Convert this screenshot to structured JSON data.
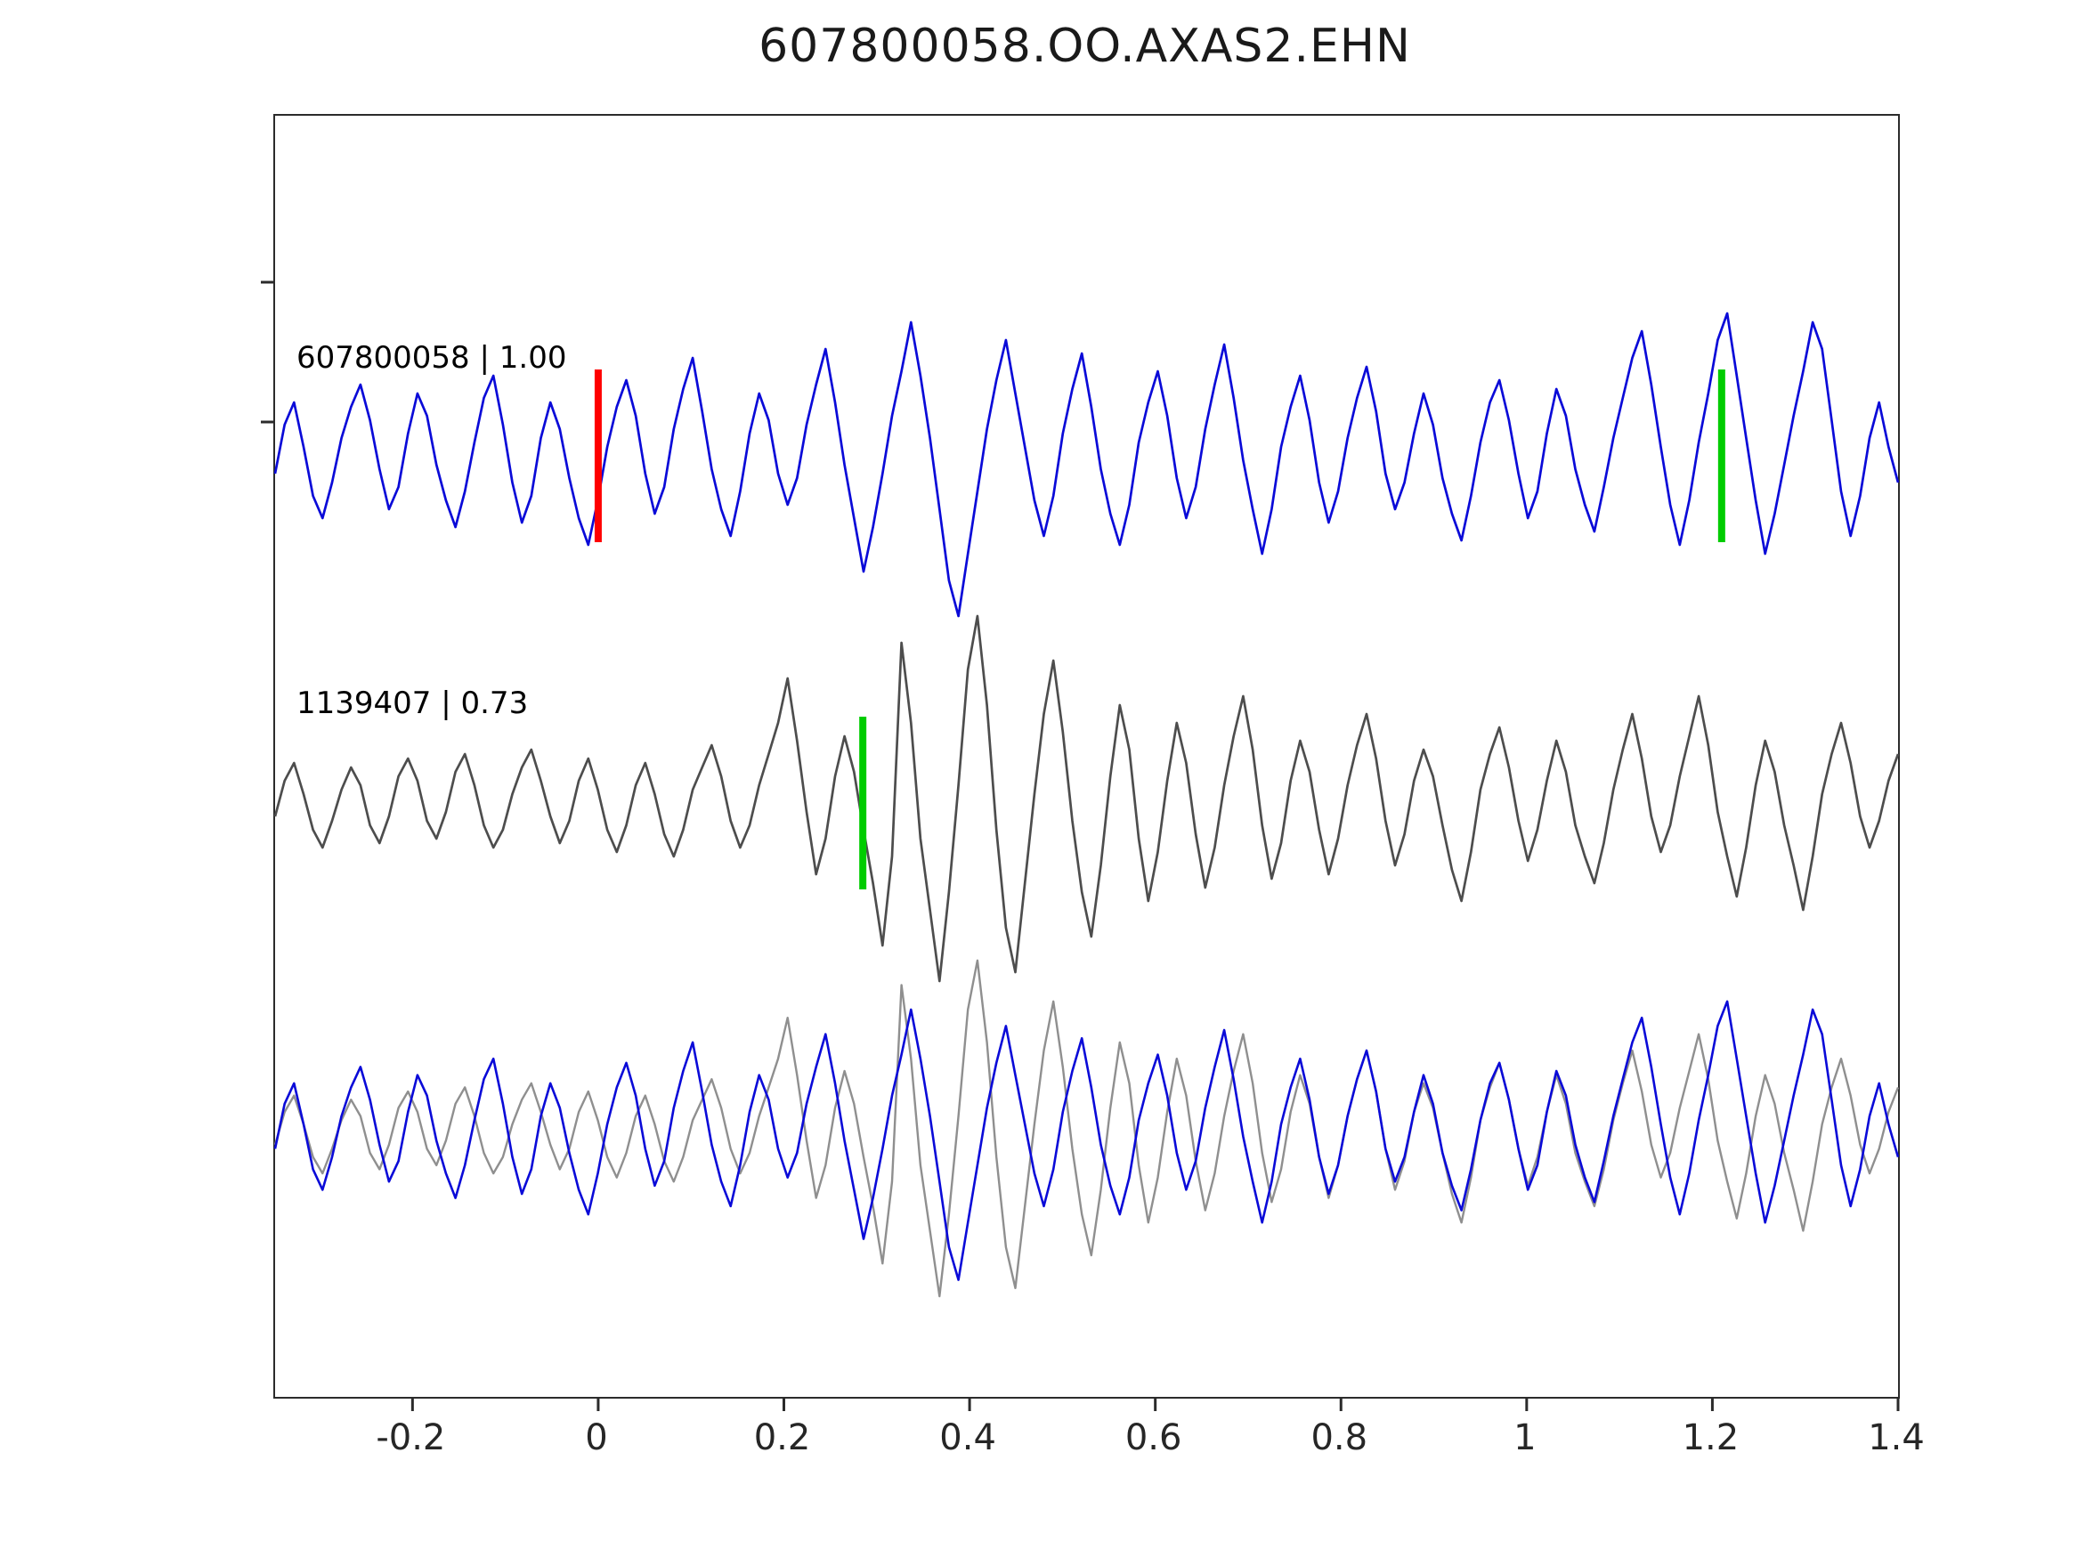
{
  "chart_data": {
    "type": "line",
    "title": "607800058.OO.AXAS2.EHN",
    "xlabel": "",
    "ylabel": "",
    "xlim": [
      -0.348,
      1.4
    ],
    "grid": false,
    "legend_position": "none",
    "x_ticks": [
      -0.2,
      0,
      0.2,
      0.4,
      0.6,
      0.8,
      1,
      1.2,
      1.4
    ],
    "x_tick_labels": [
      "-0.2",
      "0",
      "0.2",
      "0.4",
      "0.6",
      "0.8",
      "1",
      "1.2",
      "1.4"
    ],
    "panels": [
      {
        "name": "template-trace",
        "label": "607800058 | 1.00",
        "series_ref": "trace_template",
        "color": "#0a0ad8",
        "amplitude_scale": 1,
        "markers": [
          {
            "x": 0.0,
            "color": "#ff0000",
            "name": "pick-marker-red"
          },
          {
            "x": 1.21,
            "color": "#00cc00",
            "name": "pick-marker-green"
          }
        ]
      },
      {
        "name": "detection-trace",
        "label": "1139407 | 0.73",
        "series_ref": "trace_detection",
        "color": "#4d4d4d",
        "amplitude_scale": 1,
        "markers": [
          {
            "x": 0.285,
            "color": "#00cc00",
            "name": "pick-marker-green"
          }
        ]
      },
      {
        "name": "overlay-trace",
        "label": "",
        "amplitude_scale": 0.92,
        "series": [
          {
            "ref": "trace_detection",
            "color": "#8f8f8f",
            "width": 2.4
          },
          {
            "ref": "trace_template",
            "color": "#0a0ad8",
            "width": 2.6
          }
        ],
        "markers": []
      }
    ],
    "series": {
      "trace_template": [
        -20,
        35,
        60,
        10,
        -45,
        -70,
        -30,
        20,
        55,
        80,
        40,
        -15,
        -60,
        -35,
        25,
        70,
        45,
        -10,
        -50,
        -80,
        -40,
        15,
        65,
        90,
        35,
        -30,
        -75,
        -45,
        20,
        60,
        30,
        -25,
        -70,
        -100,
        -50,
        10,
        55,
        85,
        45,
        -20,
        -65,
        -35,
        30,
        75,
        110,
        50,
        -15,
        -60,
        -90,
        -40,
        25,
        70,
        40,
        -20,
        -55,
        -25,
        35,
        80,
        120,
        60,
        -10,
        -70,
        -130,
        -80,
        -20,
        45,
        95,
        150,
        90,
        20,
        -60,
        -140,
        -180,
        -110,
        -40,
        30,
        85,
        130,
        70,
        10,
        -50,
        -90,
        -45,
        25,
        75,
        115,
        55,
        -15,
        -65,
        -100,
        -55,
        15,
        60,
        95,
        45,
        -25,
        -70,
        -35,
        30,
        80,
        125,
        65,
        -5,
        -60,
        -110,
        -60,
        10,
        55,
        90,
        40,
        -30,
        -75,
        -40,
        20,
        65,
        100,
        50,
        -20,
        -60,
        -30,
        25,
        70,
        35,
        -25,
        -65,
        -95,
        -45,
        15,
        60,
        85,
        40,
        -20,
        -70,
        -40,
        25,
        75,
        45,
        -15,
        -55,
        -85,
        -35,
        20,
        65,
        110,
        140,
        80,
        10,
        -55,
        -100,
        -50,
        15,
        70,
        130,
        160,
        90,
        20,
        -50,
        -110,
        -65,
        -10,
        45,
        95,
        150,
        120,
        40,
        -40,
        -90,
        -45,
        20,
        60,
        10,
        -30
      ],
      "trace_detection": [
        -15,
        25,
        45,
        10,
        -30,
        -50,
        -20,
        15,
        40,
        20,
        -25,
        -45,
        -15,
        30,
        50,
        25,
        -20,
        -40,
        -10,
        35,
        55,
        20,
        -25,
        -50,
        -30,
        10,
        40,
        60,
        25,
        -15,
        -45,
        -20,
        25,
        50,
        15,
        -30,
        -55,
        -25,
        20,
        45,
        10,
        -35,
        -60,
        -30,
        15,
        40,
        65,
        30,
        -20,
        -50,
        -25,
        20,
        55,
        90,
        140,
        70,
        -10,
        -80,
        -40,
        30,
        75,
        35,
        -30,
        -90,
        -160,
        -60,
        180,
        90,
        -40,
        -120,
        -200,
        -100,
        20,
        150,
        210,
        110,
        -30,
        -140,
        -190,
        -90,
        10,
        100,
        160,
        80,
        -20,
        -100,
        -150,
        -70,
        30,
        110,
        60,
        -40,
        -110,
        -55,
        25,
        90,
        45,
        -35,
        -95,
        -50,
        20,
        75,
        120,
        60,
        -25,
        -85,
        -45,
        25,
        70,
        35,
        -30,
        -80,
        -40,
        20,
        65,
        100,
        50,
        -20,
        -70,
        -35,
        25,
        60,
        30,
        -25,
        -75,
        -110,
        -55,
        15,
        55,
        85,
        40,
        -20,
        -65,
        -30,
        25,
        70,
        35,
        -25,
        -60,
        -90,
        -45,
        15,
        60,
        100,
        50,
        -15,
        -55,
        -25,
        30,
        75,
        120,
        65,
        -10,
        -60,
        -105,
        -50,
        20,
        70,
        35,
        -25,
        -70,
        -120,
        -60,
        10,
        55,
        90,
        45,
        -15,
        -50,
        -20,
        25,
        55
      ]
    },
    "axis_color": "#2b2b2b"
  }
}
